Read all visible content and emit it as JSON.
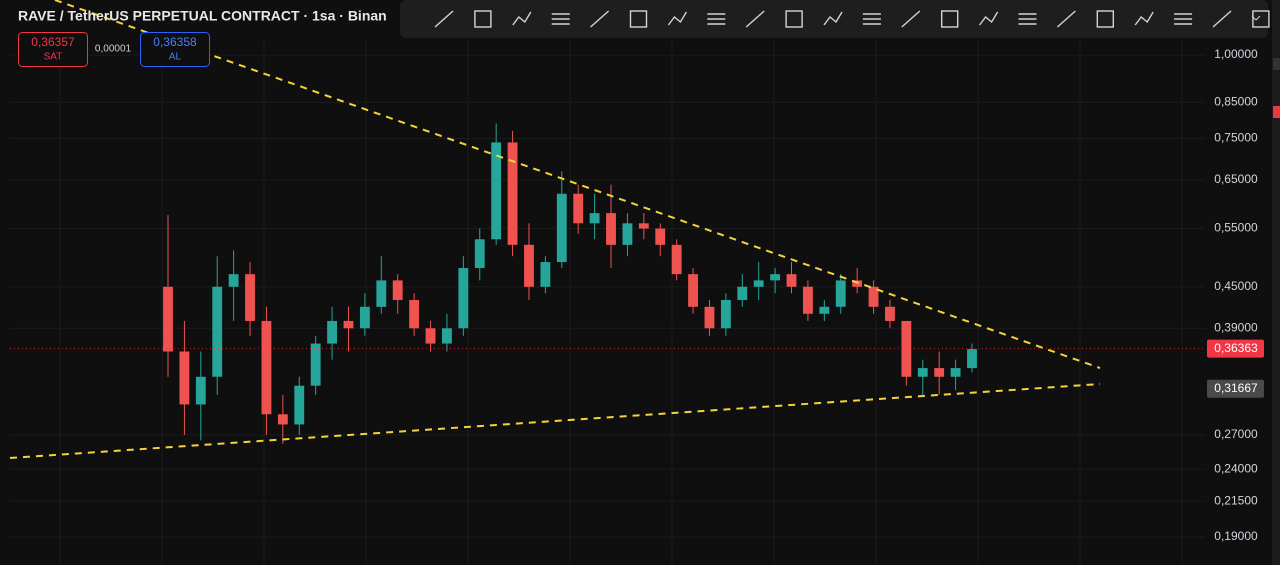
{
  "chart_data": {
    "type": "candlestick",
    "title": "RAVE / TetherUS PERPETUAL CONTRACT · 1sa · Binan",
    "sell": {
      "price": "0,36357",
      "label": "SAT"
    },
    "spread": "0,00001",
    "buy": {
      "price": "0,36358",
      "label": "AL"
    },
    "log_scale": true,
    "grid": true,
    "up_color": "#26a69a",
    "down_color": "#ef5350",
    "ylim": [
      0.1725,
      1.209
    ],
    "yticks": [
      {
        "value": 1.0,
        "label": "1,00000"
      },
      {
        "value": 0.85,
        "label": "0,85000"
      },
      {
        "value": 0.75,
        "label": "0,75000"
      },
      {
        "value": 0.65,
        "label": "0,65000"
      },
      {
        "value": 0.55,
        "label": "0,55000"
      },
      {
        "value": 0.45,
        "label": "0,45000"
      },
      {
        "value": 0.39,
        "label": "0,39000"
      },
      {
        "value": 0.27,
        "label": "0,27000"
      },
      {
        "value": 0.24,
        "label": "0,24000"
      },
      {
        "value": 0.215,
        "label": "0,21500"
      },
      {
        "value": 0.19,
        "label": "0,19000"
      }
    ],
    "price_labels": [
      {
        "value": 0.36363,
        "label": "0,36363",
        "color": "#f23645"
      },
      {
        "value": 0.31667,
        "label": "0,31667",
        "color": "#4a4a4a"
      }
    ],
    "open": [
      0.45,
      0.36,
      0.3,
      0.33,
      0.45,
      0.47,
      0.4,
      0.29,
      0.28,
      0.32,
      0.37,
      0.4,
      0.39,
      0.42,
      0.46,
      0.43,
      0.39,
      0.37,
      0.39,
      0.48,
      0.53,
      0.74,
      0.52,
      0.45,
      0.49,
      0.62,
      0.56,
      0.58,
      0.52,
      0.56,
      0.55,
      0.52,
      0.47,
      0.42,
      0.39,
      0.43,
      0.45,
      0.46,
      0.47,
      0.45,
      0.41,
      0.42,
      0.46,
      0.45,
      0.42,
      0.4,
      0.33,
      0.34,
      0.33,
      0.34
    ],
    "high": [
      0.576,
      0.4,
      0.36,
      0.5,
      0.51,
      0.49,
      0.42,
      0.31,
      0.33,
      0.38,
      0.42,
      0.42,
      0.44,
      0.5,
      0.47,
      0.44,
      0.4,
      0.41,
      0.5,
      0.55,
      0.79,
      0.77,
      0.56,
      0.5,
      0.67,
      0.64,
      0.62,
      0.64,
      0.58,
      0.58,
      0.56,
      0.53,
      0.48,
      0.43,
      0.44,
      0.47,
      0.49,
      0.48,
      0.49,
      0.46,
      0.43,
      0.47,
      0.48,
      0.46,
      0.43,
      0.4,
      0.35,
      0.36,
      0.35,
      0.37
    ],
    "low": [
      0.33,
      0.27,
      0.265,
      0.31,
      0.4,
      0.38,
      0.27,
      0.262,
      0.27,
      0.31,
      0.35,
      0.36,
      0.38,
      0.41,
      0.41,
      0.38,
      0.36,
      0.36,
      0.38,
      0.46,
      0.52,
      0.5,
      0.43,
      0.44,
      0.48,
      0.54,
      0.53,
      0.48,
      0.5,
      0.53,
      0.5,
      0.46,
      0.41,
      0.38,
      0.38,
      0.42,
      0.43,
      0.44,
      0.44,
      0.4,
      0.4,
      0.41,
      0.44,
      0.41,
      0.39,
      0.32,
      0.31,
      0.31,
      0.315,
      0.335
    ],
    "close": [
      0.36,
      0.3,
      0.33,
      0.45,
      0.47,
      0.4,
      0.29,
      0.28,
      0.32,
      0.37,
      0.4,
      0.39,
      0.42,
      0.46,
      0.43,
      0.39,
      0.37,
      0.39,
      0.48,
      0.53,
      0.74,
      0.52,
      0.45,
      0.49,
      0.62,
      0.56,
      0.58,
      0.52,
      0.56,
      0.55,
      0.52,
      0.47,
      0.42,
      0.39,
      0.43,
      0.45,
      0.46,
      0.47,
      0.45,
      0.41,
      0.42,
      0.46,
      0.45,
      0.42,
      0.4,
      0.33,
      0.34,
      0.33,
      0.34,
      0.363
    ]
  }
}
